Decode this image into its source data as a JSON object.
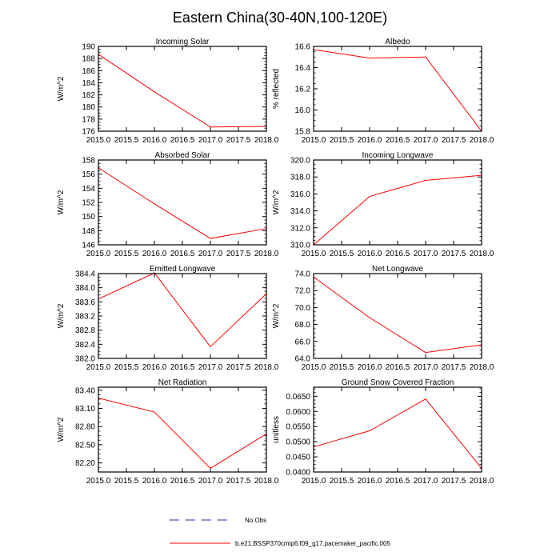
{
  "title": "Eastern China(30-40N,100-120E)",
  "colors": {
    "model": "#ff0000",
    "obs": "#2233aa",
    "axis": "#000000"
  },
  "chart_data": [
    {
      "type": "line",
      "title": "Incoming Solar",
      "ylabel": "W/m^2",
      "x": [
        2015.0,
        2016.0,
        2017.0,
        2018.0
      ],
      "series": [
        {
          "name": "b.e21.BSSP370cmip6.f09_g17.pacemaker_pacific.005",
          "values": [
            188.7,
            182.5,
            176.7,
            176.8
          ]
        }
      ],
      "xlim": [
        2015.0,
        2018.0
      ],
      "ylim": [
        176,
        190
      ],
      "xticks": [
        "2015.0",
        "2015.5",
        "2016.0",
        "2016.5",
        "2017.0",
        "2017.5",
        "2018.0"
      ],
      "yticks": [
        "176",
        "178",
        "180",
        "182",
        "184",
        "186",
        "188",
        "190"
      ]
    },
    {
      "type": "line",
      "title": "Albedo",
      "ylabel": "% reflected",
      "x": [
        2015.0,
        2016.0,
        2017.0,
        2018.0
      ],
      "series": [
        {
          "name": "b.e21.BSSP370cmip6.f09_g17.pacemaker_pacific.005",
          "values": [
            16.57,
            16.49,
            16.5,
            15.8
          ]
        }
      ],
      "xlim": [
        2015.0,
        2018.0
      ],
      "ylim": [
        15.8,
        16.6
      ],
      "xticks": [
        "2015.0",
        "2015.5",
        "2016.0",
        "2016.5",
        "2017.0",
        "2017.5",
        "2018.0"
      ],
      "yticks": [
        "15.8",
        "16.0",
        "16.2",
        "16.4",
        "16.6"
      ]
    },
    {
      "type": "line",
      "title": "Absorbed Solar",
      "ylabel": "W/m^2",
      "x": [
        2015.0,
        2016.0,
        2017.0,
        2018.0
      ],
      "series": [
        {
          "name": "b.e21.BSSP370cmip6.f09_g17.pacemaker_pacific.005",
          "values": [
            156.9,
            151.8,
            146.9,
            148.3
          ]
        }
      ],
      "xlim": [
        2015.0,
        2018.0
      ],
      "ylim": [
        146,
        158
      ],
      "xticks": [
        "2015.0",
        "2015.5",
        "2016.0",
        "2016.5",
        "2017.0",
        "2017.5",
        "2018.0"
      ],
      "yticks": [
        "146",
        "148",
        "150",
        "152",
        "154",
        "156",
        "158"
      ]
    },
    {
      "type": "line",
      "title": "Incoming Longwave",
      "ylabel": "W/m^2",
      "x": [
        2015.0,
        2016.0,
        2017.0,
        2018.0
      ],
      "series": [
        {
          "name": "b.e21.BSSP370cmip6.f09_g17.pacemaker_pacific.005",
          "values": [
            310.0,
            315.7,
            317.6,
            318.2
          ]
        }
      ],
      "xlim": [
        2015.0,
        2018.0
      ],
      "ylim": [
        310,
        320
      ],
      "xticks": [
        "2015.0",
        "2015.5",
        "2016.0",
        "2016.5",
        "2017.0",
        "2017.5",
        "2018.0"
      ],
      "yticks": [
        "310.0",
        "312.0",
        "314.0",
        "316.0",
        "318.0",
        "320.0"
      ]
    },
    {
      "type": "line",
      "title": "Emitted Longwave",
      "ylabel": "W/m^2",
      "x": [
        2015.0,
        2016.0,
        2017.0,
        2018.0
      ],
      "series": [
        {
          "name": "b.e21.BSSP370cmip6.f09_g17.pacemaker_pacific.005",
          "values": [
            383.68,
            384.42,
            382.33,
            383.83
          ]
        }
      ],
      "xlim": [
        2015.0,
        2018.0
      ],
      "ylim": [
        382.0,
        384.4
      ],
      "xticks": [
        "2015.0",
        "2015.5",
        "2016.0",
        "2016.5",
        "2017.0",
        "2017.5",
        "2018.0"
      ],
      "yticks": [
        "382.0",
        "382.4",
        "382.8",
        "383.2",
        "383.6",
        "384.0",
        "384.4"
      ]
    },
    {
      "type": "line",
      "title": "Net Longwave",
      "ylabel": "W/m^2",
      "x": [
        2015.0,
        2016.0,
        2017.0,
        2018.0
      ],
      "series": [
        {
          "name": "b.e21.BSSP370cmip6.f09_g17.pacemaker_pacific.005",
          "values": [
            73.6,
            68.8,
            64.7,
            65.6
          ]
        }
      ],
      "xlim": [
        2015.0,
        2018.0
      ],
      "ylim": [
        64,
        74
      ],
      "xticks": [
        "2015.0",
        "2015.5",
        "2016.0",
        "2016.5",
        "2017.0",
        "2017.5",
        "2018.0"
      ],
      "yticks": [
        "64.0",
        "66.0",
        "68.0",
        "70.0",
        "72.0",
        "74.0"
      ]
    },
    {
      "type": "line",
      "title": "Net Radiation",
      "ylabel": "W/m^2",
      "x": [
        2015.0,
        2016.0,
        2017.0,
        2018.0
      ],
      "series": [
        {
          "name": "b.e21.BSSP370cmip6.f09_g17.pacemaker_pacific.005",
          "values": [
            83.27,
            83.04,
            82.11,
            82.68
          ]
        }
      ],
      "xlim": [
        2015.0,
        2018.0
      ],
      "ylim": [
        82.05,
        83.45
      ],
      "xticks": [
        "2015.0",
        "2015.5",
        "2016.0",
        "2016.5",
        "2017.0",
        "2017.5",
        "2018.0"
      ],
      "yticks": [
        "82.20",
        "82.50",
        "82.80",
        "83.10",
        "83.40"
      ]
    },
    {
      "type": "line",
      "title": "Ground Snow Covered Fraction",
      "ylabel": "unitless",
      "x": [
        2015.0,
        2016.0,
        2017.0,
        2018.0
      ],
      "series": [
        {
          "name": "b.e21.BSSP370cmip6.f09_g17.pacemaker_pacific.005",
          "values": [
            0.0483,
            0.0536,
            0.0641,
            0.0412
          ]
        }
      ],
      "xlim": [
        2015.0,
        2018.0
      ],
      "ylim": [
        0.04,
        0.068
      ],
      "xticks": [
        "2015.0",
        "2015.5",
        "2016.0",
        "2016.5",
        "2017.0",
        "2017.5",
        "2018.0"
      ],
      "yticks": [
        "0.0400",
        "0.0450",
        "0.0500",
        "0.0550",
        "0.0600",
        "0.0650"
      ]
    }
  ],
  "legend": {
    "obs_label": "No Obs",
    "model_label": "b.e21.BSSP370cmip6.f09_g17.pacemaker_pacific.005"
  }
}
